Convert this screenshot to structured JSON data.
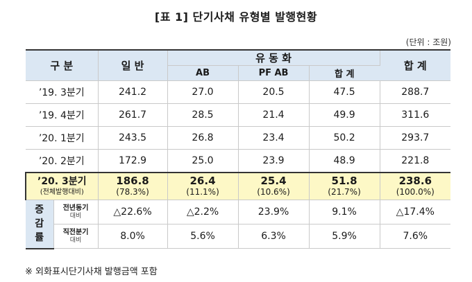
{
  "title": "[표 1] 단기사채 유형별 발행현황",
  "unit": "(단위 : 조원)",
  "header": {
    "category": "구 분",
    "general": "일 반",
    "securitization": "유 동 화",
    "ab": "AB",
    "pf_ab": "PF AB",
    "sub_total": "합 계",
    "total": "합 계"
  },
  "rows": [
    {
      "label": "’19. 3분기",
      "general": "241.2",
      "ab": "27.0",
      "pf_ab": "20.5",
      "sub_total": "47.5",
      "total": "288.7"
    },
    {
      "label": "’19. 4분기",
      "general": "261.7",
      "ab": "28.5",
      "pf_ab": "21.4",
      "sub_total": "49.9",
      "total": "311.6"
    },
    {
      "label": "’20. 1분기",
      "general": "243.5",
      "ab": "26.8",
      "pf_ab": "23.4",
      "sub_total": "50.2",
      "total": "293.7"
    },
    {
      "label": "’20. 2분기",
      "general": "172.9",
      "ab": "25.0",
      "pf_ab": "23.9",
      "sub_total": "48.9",
      "total": "221.8"
    }
  ],
  "highlight": {
    "label": "’20. 3분기",
    "label_sub": "(전체발행대비)",
    "general": "186.8",
    "general_pct": "(78.3%)",
    "ab": "26.4",
    "ab_pct": "(11.1%)",
    "pf_ab": "25.4",
    "pf_ab_pct": "(10.6%)",
    "sub_total": "51.8",
    "sub_total_pct": "(21.7%)",
    "total": "238.6",
    "total_pct": "(100.0%)"
  },
  "growth": {
    "header": "증감률",
    "rows": [
      {
        "label": "전년동기",
        "label_sub": "대비",
        "general": "△22.6%",
        "ab": "△2.2%",
        "pf_ab": "23.9%",
        "sub_total": "9.1%",
        "total": "△17.4%"
      },
      {
        "label": "직전분기",
        "label_sub": "대비",
        "general": "8.0%",
        "ab": "5.6%",
        "pf_ab": "6.3%",
        "sub_total": "5.9%",
        "total": "7.6%"
      }
    ]
  },
  "footnote": "※ 외화표시단기사채 발행금액 포함"
}
